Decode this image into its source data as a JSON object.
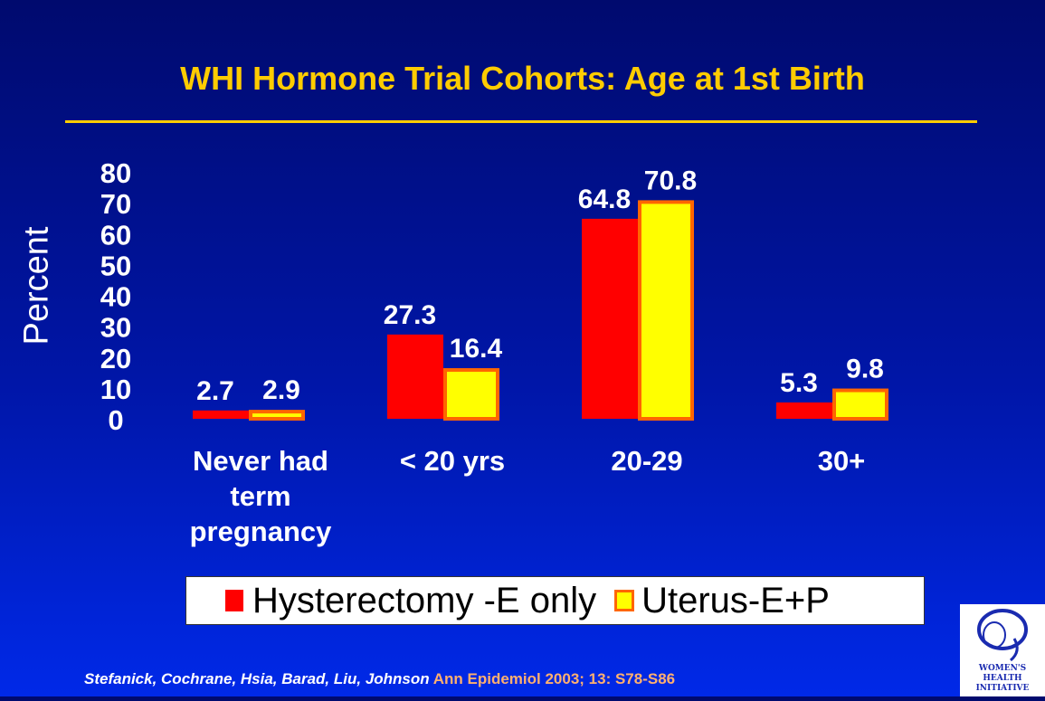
{
  "title": "WHI Hormone Trial Cohorts: Age at 1st Birth",
  "chart_data": {
    "type": "bar",
    "title": "WHI Hormone Trial Cohorts: Age at 1st Birth",
    "ylabel": "Percent",
    "xlabel": "",
    "ylim": [
      0,
      80
    ],
    "yticks": [
      0,
      10,
      20,
      30,
      40,
      50,
      60,
      70,
      80
    ],
    "categories": [
      [
        "Never had",
        "term",
        "pregnancy"
      ],
      [
        "< 20 yrs"
      ],
      [
        "20-29"
      ],
      [
        "30+"
      ]
    ],
    "series": [
      {
        "name": "Hysterectomy -E only",
        "values": [
          2.7,
          27.3,
          64.8,
          5.3
        ],
        "color": "#ff0000"
      },
      {
        "name": "Uterus-E+P",
        "values": [
          2.9,
          16.4,
          70.8,
          9.8
        ],
        "color": "#ffff00",
        "border": "#ff6600"
      }
    ],
    "value_labels": [
      [
        "2.7",
        "27.3",
        "64.8",
        "5.3"
      ],
      [
        "2.9",
        "16.4",
        "70.8",
        "9.8"
      ]
    ],
    "legend_position": "bottom"
  },
  "legend": {
    "item1": "Hysterectomy -E only",
    "item2": "Uterus-E+P"
  },
  "citation": {
    "authors": "Stefanick, Cochrane, Hsia, Barad, Liu, Johnson",
    "journal": " Ann Epidemiol 2003; 13: S78-S86"
  },
  "logo": {
    "line1": "WOMEN'S",
    "line2": "HEALTH",
    "line3": "INITIATIVE"
  },
  "colors": {
    "background": "#0016a8",
    "title": "#ffcc00",
    "text": "#ffffff"
  }
}
